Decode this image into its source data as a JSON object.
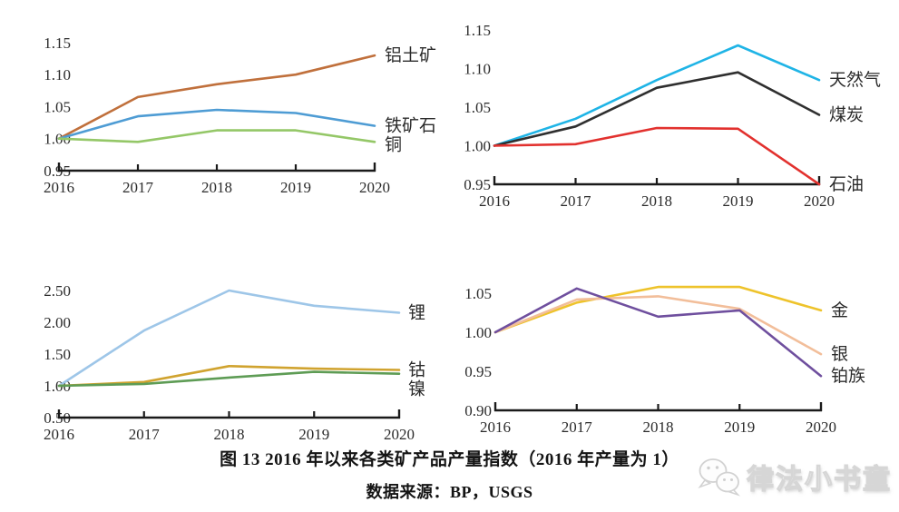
{
  "figure": {
    "caption": "图 13 2016 年以来各类矿产品产量指数（2016 年产量为 1）",
    "source": "数据来源：BP，USGS",
    "watermark_text": "律法小书童"
  },
  "chart_data": [
    {
      "type": "line",
      "position": "top-left",
      "categories": [
        "2016",
        "2017",
        "2018",
        "2019",
        "2020"
      ],
      "ylim": [
        0.95,
        1.15
      ],
      "y_ticks": [
        "0.95",
        "1.00",
        "1.05",
        "1.10",
        "1.15"
      ],
      "grid": false,
      "legend_position": "right-of-line-end",
      "series": [
        {
          "name": "铝土矿",
          "color": "#C0703C",
          "values": [
            1.0,
            1.065,
            1.085,
            1.1,
            1.13
          ]
        },
        {
          "name": "铁矿石",
          "color": "#4E9CD4",
          "values": [
            1.0,
            1.035,
            1.045,
            1.04,
            1.02
          ]
        },
        {
          "name": "铜",
          "color": "#94C767",
          "values": [
            1.0,
            0.995,
            1.013,
            1.013,
            0.995
          ]
        }
      ]
    },
    {
      "type": "line",
      "position": "top-right",
      "categories": [
        "2016",
        "2017",
        "2018",
        "2019",
        "2020"
      ],
      "ylim": [
        0.95,
        1.15
      ],
      "y_ticks": [
        "0.95",
        "1.00",
        "1.05",
        "1.10",
        "1.15"
      ],
      "grid": false,
      "legend_position": "right-of-line-end",
      "series": [
        {
          "name": "天然气",
          "color": "#1FB4E6",
          "values": [
            1.0,
            1.035,
            1.085,
            1.13,
            1.085
          ]
        },
        {
          "name": "煤炭",
          "color": "#2F2F2F",
          "values": [
            1.0,
            1.025,
            1.075,
            1.095,
            1.04
          ]
        },
        {
          "name": "石油",
          "color": "#E2312E",
          "values": [
            1.0,
            1.002,
            1.023,
            1.022,
            0.95
          ]
        }
      ]
    },
    {
      "type": "line",
      "position": "bottom-left",
      "categories": [
        "2016",
        "2017",
        "2018",
        "2019",
        "2020"
      ],
      "ylim": [
        0.5,
        2.5
      ],
      "y_ticks": [
        "0.50",
        "1.00",
        "1.50",
        "2.00",
        "2.50"
      ],
      "grid": false,
      "legend_position": "right-of-line-end",
      "series": [
        {
          "name": "锂",
          "color": "#9EC6E8",
          "values": [
            1.0,
            1.87,
            2.5,
            2.26,
            2.15
          ]
        },
        {
          "name": "钴",
          "color": "#D0A32F",
          "values": [
            1.0,
            1.06,
            1.31,
            1.27,
            1.25
          ]
        },
        {
          "name": "镍",
          "color": "#5E9C55",
          "values": [
            1.0,
            1.03,
            1.13,
            1.22,
            1.19
          ]
        }
      ]
    },
    {
      "type": "line",
      "position": "bottom-right",
      "categories": [
        "2016",
        "2017",
        "2018",
        "2019",
        "2020"
      ],
      "ylim": [
        0.9,
        1.05
      ],
      "y_ticks": [
        "0.90",
        "0.95",
        "1.00",
        "1.05"
      ],
      "grid": false,
      "legend_position": "right-of-line-end",
      "series": [
        {
          "name": "金",
          "color": "#EEC32B",
          "values": [
            1.0,
            1.038,
            1.058,
            1.058,
            1.028
          ]
        },
        {
          "name": "银",
          "color": "#F2BE9A",
          "values": [
            1.0,
            1.042,
            1.046,
            1.03,
            0.972
          ]
        },
        {
          "name": "铂族",
          "color": "#6F4F9E",
          "values": [
            1.0,
            1.056,
            1.02,
            1.028,
            0.944
          ]
        }
      ]
    }
  ]
}
